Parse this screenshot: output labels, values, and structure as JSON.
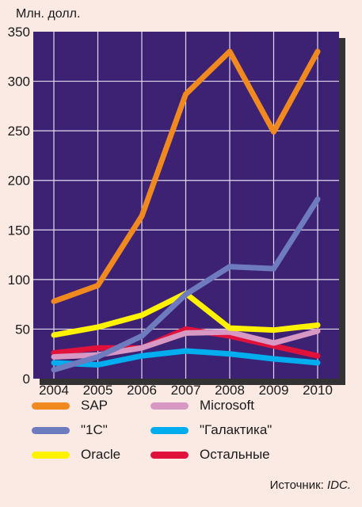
{
  "chart_data": {
    "type": "line",
    "ylabel": "Млн. долл.",
    "xlabel": "",
    "x": [
      "2004",
      "2005",
      "2006",
      "2007",
      "2008",
      "2009",
      "2010"
    ],
    "ylim": [
      0,
      350
    ],
    "yticks": [
      "0",
      "50",
      "100",
      "150",
      "200",
      "250",
      "300",
      "350"
    ],
    "grid": true,
    "legend_position": "bottom",
    "plot_background": "#3d2273",
    "grid_color": "#e3d9ee",
    "series": [
      {
        "name": "SAP",
        "color": "#f0891f",
        "values": [
          78,
          94,
          164,
          287,
          330,
          249,
          330
        ]
      },
      {
        "name": "\"1C\"",
        "color": "#6f7bbf",
        "values": [
          9,
          22,
          43,
          85,
          113,
          111,
          181
        ]
      },
      {
        "name": "Oracle",
        "color": "#fff200",
        "values": [
          44,
          52,
          64,
          86,
          51,
          49,
          54
        ]
      },
      {
        "name": "Microsoft",
        "color": "#d898c4",
        "values": [
          22,
          24,
          31,
          46,
          47,
          36,
          48
        ]
      },
      {
        "name": "\"Галактика\"",
        "color": "#00aeef",
        "values": [
          16,
          14,
          23,
          28,
          25,
          20,
          16
        ]
      },
      {
        "name": "Остальные",
        "color": "#e0123b",
        "values": [
          26,
          31,
          31,
          50,
          43,
          33,
          23
        ]
      }
    ],
    "legend_order": [
      "SAP",
      "Microsoft",
      "\"1C\"",
      "\"Галактика\"",
      "Oracle",
      "Остальные"
    ]
  },
  "source": {
    "label": "Источник:",
    "value": "IDC."
  }
}
